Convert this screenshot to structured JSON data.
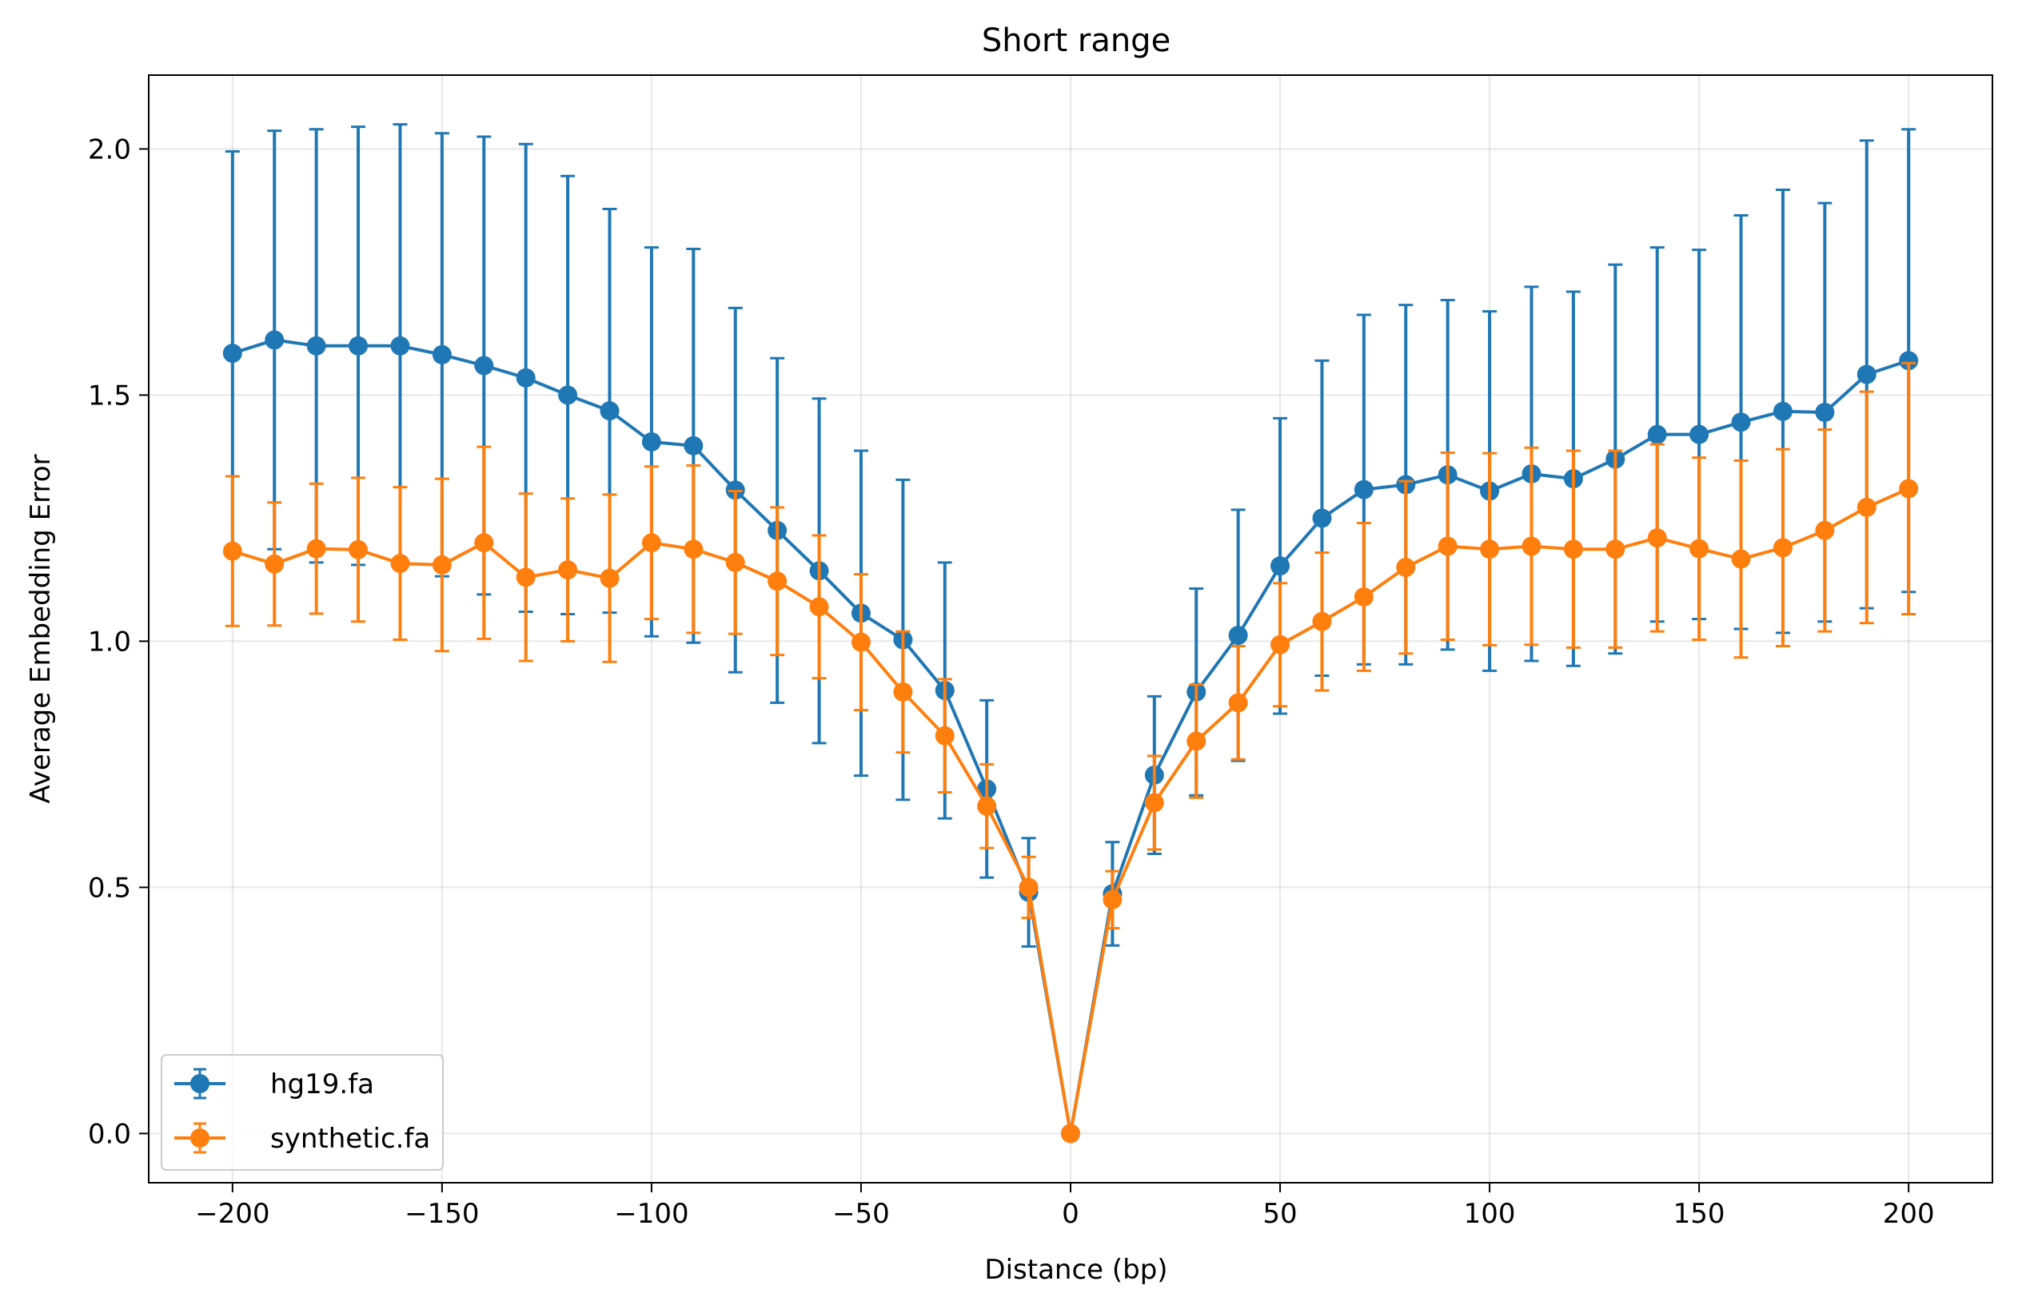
{
  "chart_data": {
    "type": "line",
    "title": "Short range",
    "xlabel": "Distance (bp)",
    "ylabel": "Average Embedding Error",
    "xlim": [
      -220,
      220
    ],
    "ylim": [
      -0.1,
      2.15
    ],
    "x_ticks": [
      -200,
      -150,
      -100,
      -50,
      0,
      50,
      100,
      150,
      200
    ],
    "x_tick_labels": [
      "−200",
      "−150",
      "−100",
      "−50",
      "0",
      "50",
      "100",
      "150",
      "200"
    ],
    "y_ticks": [
      0.0,
      0.5,
      1.0,
      1.5,
      2.0
    ],
    "y_tick_labels": [
      "0.0",
      "0.5",
      "1.0",
      "1.5",
      "2.0"
    ],
    "grid": true,
    "legend_position": "bottom-left",
    "x": [
      -200,
      -190,
      -180,
      -170,
      -160,
      -150,
      -140,
      -130,
      -120,
      -110,
      -100,
      -90,
      -80,
      -70,
      -60,
      -50,
      -40,
      -30,
      -20,
      -10,
      0,
      10,
      20,
      30,
      40,
      50,
      60,
      70,
      80,
      90,
      100,
      110,
      120,
      130,
      140,
      150,
      160,
      170,
      180,
      190,
      200
    ],
    "series": [
      {
        "name": "hg19.fa",
        "color": "#1f77b4",
        "values": [
          1.585,
          1.612,
          1.6,
          1.6,
          1.6,
          1.582,
          1.56,
          1.535,
          1.5,
          1.468,
          1.405,
          1.397,
          1.307,
          1.225,
          1.143,
          1.057,
          1.003,
          0.9,
          0.7,
          0.49,
          0.0,
          0.487,
          0.728,
          0.897,
          1.012,
          1.153,
          1.25,
          1.308,
          1.318,
          1.338,
          1.305,
          1.34,
          1.33,
          1.37,
          1.42,
          1.42,
          1.445,
          1.467,
          1.465,
          1.542,
          1.57
        ],
        "err": [
          0.41,
          0.425,
          0.44,
          0.445,
          0.45,
          0.45,
          0.465,
          0.475,
          0.445,
          0.41,
          0.395,
          0.4,
          0.37,
          0.35,
          0.35,
          0.33,
          0.325,
          0.26,
          0.18,
          0.11,
          0.0,
          0.105,
          0.16,
          0.21,
          0.255,
          0.3,
          0.32,
          0.355,
          0.365,
          0.355,
          0.365,
          0.38,
          0.38,
          0.395,
          0.38,
          0.375,
          0.42,
          0.45,
          0.425,
          0.475,
          0.47
        ]
      },
      {
        "name": "synthetic.fa",
        "color": "#ff7f0e",
        "values": [
          1.183,
          1.157,
          1.188,
          1.186,
          1.158,
          1.155,
          1.2,
          1.13,
          1.145,
          1.128,
          1.2,
          1.187,
          1.16,
          1.122,
          1.07,
          0.998,
          0.897,
          0.808,
          0.665,
          0.5,
          0.0,
          0.475,
          0.672,
          0.797,
          0.875,
          0.993,
          1.04,
          1.09,
          1.15,
          1.193,
          1.187,
          1.193,
          1.187,
          1.187,
          1.21,
          1.188,
          1.167,
          1.19,
          1.225,
          1.272,
          1.31
        ],
        "err": [
          0.152,
          0.125,
          0.132,
          0.146,
          0.155,
          0.175,
          0.195,
          0.17,
          0.145,
          0.17,
          0.155,
          0.17,
          0.145,
          0.15,
          0.145,
          0.138,
          0.123,
          0.115,
          0.085,
          0.062,
          0.0,
          0.058,
          0.095,
          0.115,
          0.115,
          0.125,
          0.14,
          0.15,
          0.175,
          0.19,
          0.195,
          0.2,
          0.2,
          0.2,
          0.19,
          0.185,
          0.2,
          0.2,
          0.205,
          0.235,
          0.255
        ]
      }
    ]
  }
}
